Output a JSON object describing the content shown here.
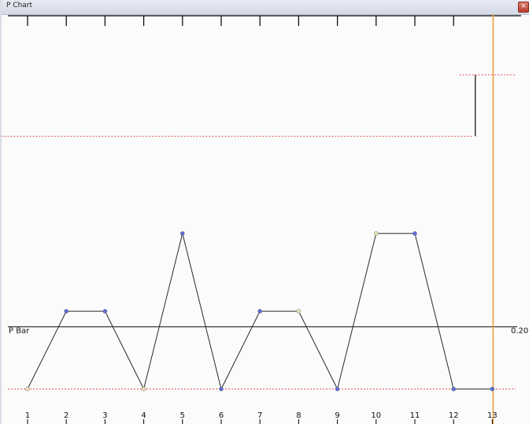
{
  "window": {
    "title": "P Chart",
    "close_glyph": "×"
  },
  "colors": {
    "background": "#fbfbfb",
    "data_line": "#2a2a2a",
    "control_limit": "#e05050",
    "center_line": "#222222",
    "current_marker": "#f0a040",
    "point_blue": "#5a6cd8",
    "point_beige": "#e9e2b8"
  },
  "chart_data": {
    "type": "line",
    "title": "P Chart",
    "x": [
      1,
      2,
      3,
      4,
      5,
      6,
      7,
      8,
      9,
      10,
      11,
      12,
      13
    ],
    "tick_labels": [
      "1",
      "2",
      "3",
      "4",
      "5",
      "6",
      "7",
      "8",
      "9",
      "10",
      "11",
      "12",
      "13"
    ],
    "series": [
      {
        "values": [
          0.12,
          0.22,
          0.22,
          0.12,
          0.32,
          0.12,
          0.22,
          0.22,
          0.12,
          0.32,
          0.32,
          0.12,
          0.12
        ],
        "point_colors": [
          "beige",
          "blue",
          "blue",
          "beige",
          "blue",
          "blue",
          "blue",
          "beige",
          "blue",
          "beige",
          "blue",
          "blue",
          "blue"
        ]
      }
    ],
    "center_line": {
      "label": "P Bar",
      "value": 0.2,
      "value_label": "0.20"
    },
    "ucl": [
      {
        "x_from": 0.5,
        "x_to": 12.5,
        "value": 0.445
      },
      {
        "x_from": 12.5,
        "x_to": 13.6,
        "value": 0.524
      }
    ],
    "lcl": {
      "x_from": 0.5,
      "x_to": 13.6,
      "value": 0.12
    },
    "current_sample": 13,
    "ylim": [
      0.075,
      0.6
    ],
    "grid": false
  }
}
